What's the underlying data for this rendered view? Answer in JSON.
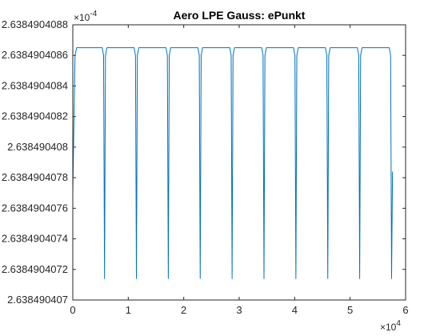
{
  "chart_data": {
    "type": "line",
    "title": "Aero LPE Gauss: ePunkt",
    "xlabel": "",
    "ylabel": "",
    "x_multiplier_base": "×10",
    "x_multiplier_exp": "4",
    "y_multiplier_base": "×10",
    "y_multiplier_exp": "-4",
    "xlim": [
      0,
      60000
    ],
    "ylim": [
      2.638490407,
      2.6384904088
    ],
    "x_ticks": [
      0,
      10000,
      20000,
      30000,
      40000,
      50000,
      60000
    ],
    "x_tick_labels": [
      "0",
      "1",
      "2",
      "3",
      "4",
      "5",
      "6"
    ],
    "y_ticks": [
      2.638490407,
      2.6384904072,
      2.6384904074,
      2.6384904076,
      2.6384904078,
      2.638490408,
      2.6384904082,
      2.6384904084,
      2.6384904086,
      2.6384904088
    ],
    "y_tick_labels": [
      "2.638490407",
      "2.6384904072",
      "2.6384904074",
      "2.6384904076",
      "2.6384904078",
      "2.638490408",
      "2.6384904082",
      "2.6384904084",
      "2.6384904086",
      "2.6384904088"
    ],
    "grid": false,
    "legend": "none",
    "series": [
      {
        "color": "#0072bd",
        "x": [
          0,
          400,
          700,
          5300,
          5550,
          5720,
          5890,
          6150,
          11050,
          11300,
          11470,
          11640,
          11900,
          16800,
          17050,
          17220,
          17390,
          17650,
          22550,
          22800,
          22970,
          23140,
          23400,
          28300,
          28550,
          28720,
          28890,
          29150,
          34050,
          34300,
          34470,
          34640,
          34900,
          39800,
          40050,
          40220,
          40390,
          40650,
          45550,
          45800,
          45970,
          46140,
          46400,
          51300,
          51550,
          51720,
          51890,
          52150,
          57050,
          57300,
          57470,
          57640
        ],
        "y": [
          2.6384904077,
          2.6384904086,
          2.63849040865,
          2.63849040865,
          2.6384904086,
          2.63849040714,
          2.6384904086,
          2.63849040865,
          2.63849040865,
          2.6384904086,
          2.63849040714,
          2.6384904086,
          2.63849040865,
          2.63849040865,
          2.6384904086,
          2.63849040714,
          2.6384904086,
          2.63849040865,
          2.63849040865,
          2.6384904086,
          2.63849040714,
          2.6384904086,
          2.63849040865,
          2.63849040865,
          2.6384904086,
          2.63849040714,
          2.6384904086,
          2.63849040865,
          2.63849040865,
          2.6384904086,
          2.63849040714,
          2.6384904086,
          2.63849040865,
          2.63849040865,
          2.6384904086,
          2.63849040714,
          2.6384904086,
          2.63849040865,
          2.63849040865,
          2.6384904086,
          2.63849040714,
          2.6384904086,
          2.63849040865,
          2.63849040865,
          2.6384904086,
          2.63849040714,
          2.6384904086,
          2.63849040865,
          2.63849040865,
          2.6384904086,
          2.63849040714,
          2.63849040784
        ]
      }
    ]
  }
}
